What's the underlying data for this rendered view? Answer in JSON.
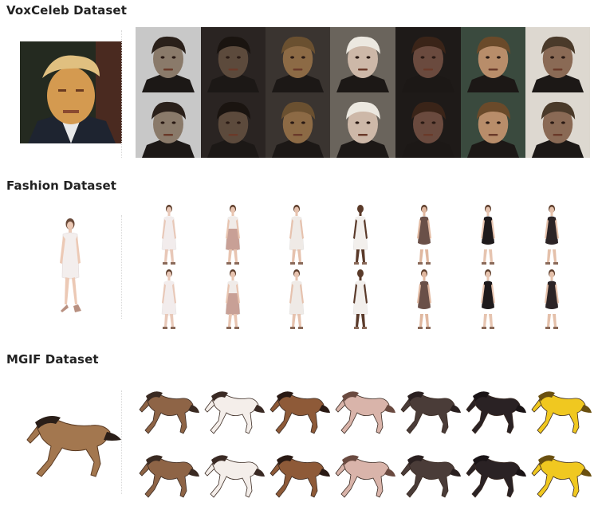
{
  "sections": {
    "vox": {
      "title": "VoxCeleb Dataset",
      "source_image": "source-face",
      "driving_frames": [
        "face-1",
        "face-2",
        "face-3",
        "face-4",
        "face-5",
        "face-6",
        "face-7"
      ]
    },
    "fashion": {
      "title": "Fashion Dataset",
      "source_image": "source-model",
      "driving_frames": [
        "model-1",
        "model-2",
        "model-3",
        "model-4",
        "model-5",
        "model-6",
        "model-7"
      ]
    },
    "mgif": {
      "title": "MGIF Dataset",
      "source_image": "source-horse",
      "driving_frames": [
        "horse-1",
        "horse-2",
        "horse-3",
        "horse-4",
        "horse-5",
        "horse-6",
        "horse-7"
      ]
    }
  },
  "colors": {
    "faces": [
      "#8a7a6a",
      "#5c4a3c",
      "#8c6a45",
      "#cdb8a8",
      "#6a4a3e",
      "#b88d6a",
      "#8a6a55"
    ],
    "face_bg": [
      "#c8c8c8",
      "#2a2422",
      "#3a3430",
      "#6a645c",
      "#1e1a18",
      "#3a4a3e",
      "#ddd8d0"
    ],
    "hair": [
      "#2a201a",
      "#1a1410",
      "#6a5030",
      "#ece8e0",
      "#3a2418",
      "#6a4a2a",
      "#4a3a2a"
    ],
    "dresses_top": [
      "#f2ecec",
      "#f0ebe8",
      "#efeae6",
      "#f2efec",
      "#6a5048",
      "#1e1a1c",
      "#2c2426"
    ],
    "dresses_bottom": [
      "#f2ecec",
      "#c8a096",
      "#efeae6",
      "#f2efec",
      "#6a5048",
      "#1e1a1c",
      "#2c2426"
    ],
    "skin": [
      "#e8c8b8",
      "#e8c4b0",
      "#e6c2ae",
      "#5a3a2a",
      "#e0b8a0",
      "#e6c4b0",
      "#e4c0aa"
    ],
    "horses": [
      "#8e6446",
      "#f4eeea",
      "#8e5a38",
      "#d9b4aa",
      "#4a3c38",
      "#2a2224",
      "#f0c820"
    ],
    "horse_mane": [
      "#3a2a22",
      "#3a2a24",
      "#2a1a14",
      "#6a4a40",
      "#2a2020",
      "#1a1416",
      "#6a5010"
    ],
    "source_face_bg": "#242a20",
    "source_face_skin": "#d49a50",
    "source_face_hair": "#e0c080",
    "source_horse": "#a3774f",
    "source_horse_mane": "#2a1e18"
  }
}
